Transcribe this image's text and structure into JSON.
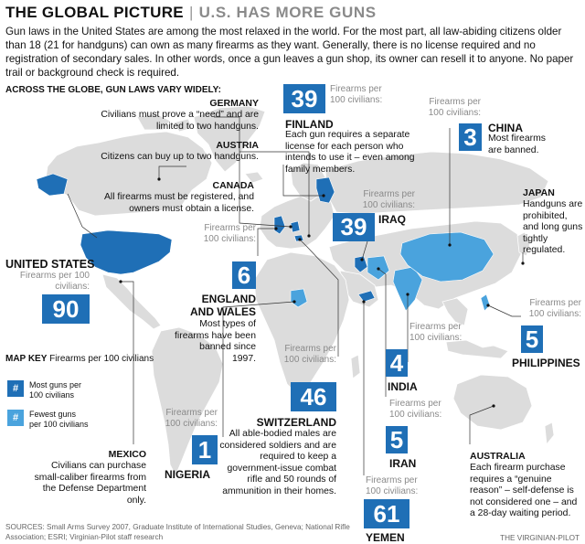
{
  "title": "THE GLOBAL PICTURE",
  "subtitle": "U.S. HAS MORE GUNS",
  "intro": "Gun laws in the United States are among the most relaxed in the world. For the most part, all law-abiding citizens older than 18 (21 for handguns) can own as many firearms as they want. Generally, there is no license required and no registration of secondary sales. In other words, once a gun leaves a gun shop, its owner can resell it to anyone. No paper trail or background check is required.",
  "globe_heading": "ACROSS THE GLOBE, GUN LAWS VARY WIDELY:",
  "unit_label": "Firearms per 100 civilians:",
  "colors": {
    "most": "#1f6fb6",
    "fewest": "#4aa3dd",
    "land": "#dcdcdc",
    "accent": "#1f6fb6"
  },
  "countries": {
    "united_states": {
      "name": "UNITED STATES",
      "value": "90",
      "unit": "Firearms per 100 civilians:",
      "level": "most"
    },
    "finland": {
      "name": "FINLAND",
      "value": "39",
      "unit": "Firearms per 100 civilians:",
      "desc": "Each gun requires a separate license for each person who intends to use it – even among family members.",
      "level": "most"
    },
    "china": {
      "name": "CHINA",
      "value": "3",
      "unit": "Firearms per 100 civilians:",
      "desc": "Most firearms are banned.",
      "level": "fewest"
    },
    "iraq": {
      "name": "IRAQ",
      "value": "39",
      "unit": "Firearms per 100 civilians:",
      "level": "most"
    },
    "england": {
      "name": "ENGLAND AND WALES",
      "name_line1": "ENGLAND",
      "name_line2": "AND WALES",
      "value": "6",
      "unit": "Firearms per 100 civilians:",
      "desc": "Most types of firearms have been banned since 1997.",
      "level": "fewest"
    },
    "india": {
      "name": "INDIA",
      "value": "4",
      "unit": "Firearms per 100 civilians:",
      "level": "fewest"
    },
    "philippines": {
      "name": "PHILIPPINES",
      "value": "5",
      "unit": "Firearms per 100 civilians:",
      "level": "fewest"
    },
    "switzerland": {
      "name": "SWITZERLAND",
      "value": "46",
      "unit": "Firearms per 100 civilians:",
      "desc": "All able-bodied males are considered soldiers and are required to keep a government-issue combat rifle and 50 rounds of ammunition in their homes.",
      "level": "most"
    },
    "nigeria": {
      "name": "NIGERIA",
      "value": "1",
      "unit": "Firearms per 100 civilians:",
      "level": "fewest"
    },
    "iran": {
      "name": "IRAN",
      "value": "5",
      "unit": "Firearms per 100 civilians:",
      "level": "fewest"
    },
    "yemen": {
      "name": "YEMEN",
      "value": "61",
      "unit": "Firearms per 100 civilians:",
      "level": "most"
    }
  },
  "notes": {
    "germany": {
      "name": "GERMANY",
      "desc": "Civilians must prove a “need” and are limited to two handguns."
    },
    "austria": {
      "name": "AUSTRIA",
      "desc": "Citizens can buy up to two handguns."
    },
    "canada": {
      "name": "CANADA",
      "desc": "All firearms must be registered, and owners must obtain a license."
    },
    "japan": {
      "name": "JAPAN",
      "desc": "Handguns are prohibited, and long guns tightly regulated."
    },
    "mexico": {
      "name": "MEXICO",
      "desc": "Civilians can purchase small-caliber firearms from the Defense Department only."
    },
    "australia": {
      "name": "AUSTRALIA",
      "desc": "Each firearm purchase requires a “genuine reason” – self-defense is not considered one – and a 28-day waiting period."
    }
  },
  "map_key": {
    "title_bold": "MAP KEY",
    "title_rest": " Firearms per 100 civilians",
    "symbol": "#",
    "most": "Most guns per 100 civilians",
    "fewest": "Fewest guns per 100 civilians"
  },
  "sources": "SOURCES: Small Arms Survey 2007, Graduate Institute of International Studies, Geneva;  National Rifle Association; ESRI; Virginian-Pilot staff research",
  "credit": "THE VIRGINIAN-PILOT"
}
